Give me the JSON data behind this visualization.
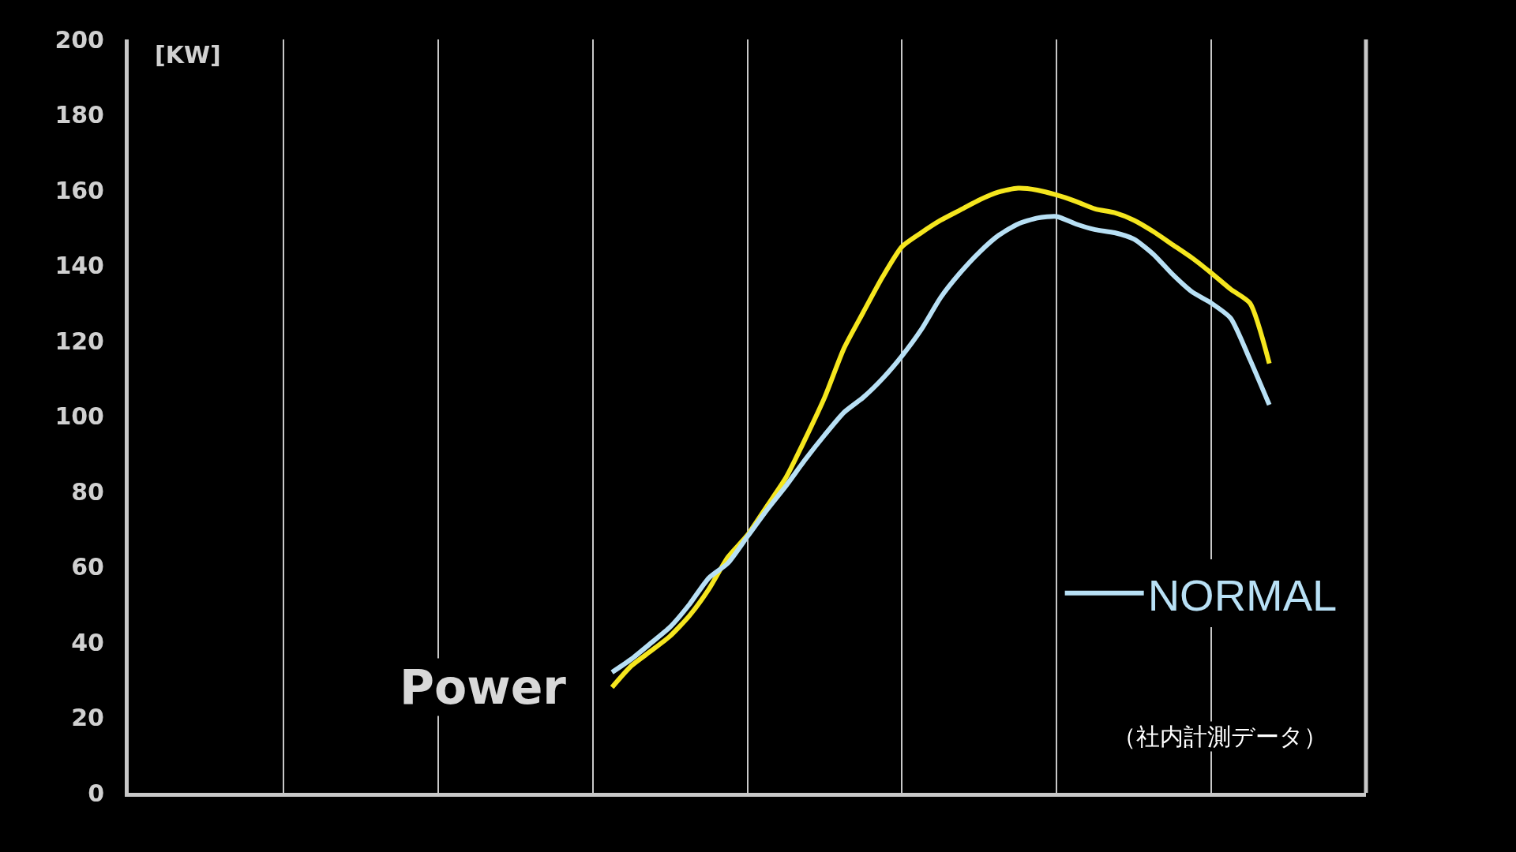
{
  "chart_data": {
    "type": "line",
    "ylabel": "[KW]",
    "categories": [
      null,
      null,
      null,
      null,
      null,
      null,
      null,
      null,
      null,
      null,
      null,
      null,
      null,
      null,
      null,
      null,
      null,
      null,
      null,
      null,
      null,
      null,
      null,
      null,
      null,
      null,
      null,
      null,
      null,
      null,
      null,
      null,
      null,
      null,
      null,
      null,
      null,
      null,
      null,
      null,
      null,
      null,
      null,
      null,
      null,
      null,
      null,
      null,
      null,
      null,
      null,
      null,
      null,
      null,
      null,
      null,
      null,
      null,
      null,
      null,
      null,
      null,
      null,
      null,
      null
    ],
    "series": [
      {
        "color": "#f5e61e",
        "values": [
          null,
          null,
          null,
          null,
          null,
          null,
          null,
          null,
          null,
          null,
          null,
          null,
          null,
          null,
          null,
          null,
          null,
          null,
          null,
          null,
          null,
          null,
          null,
          null,
          null,
          28,
          33.7,
          37.6,
          41.6,
          47,
          54,
          62.6,
          68.4,
          76,
          83.7,
          94,
          105,
          118,
          127.6,
          137,
          145,
          148.7,
          152,
          154.7,
          157.4,
          159.5,
          160.5,
          160,
          158.7,
          157,
          155,
          154,
          152,
          149,
          145.5,
          142,
          138,
          133.7,
          130,
          114,
          null,
          null,
          null,
          null,
          null
        ]
      },
      {
        "name": "NORMAL",
        "color": "#b8e0f5",
        "values": [
          null,
          null,
          null,
          null,
          null,
          null,
          null,
          null,
          null,
          null,
          null,
          null,
          null,
          null,
          null,
          null,
          null,
          null,
          null,
          null,
          null,
          null,
          null,
          null,
          null,
          32,
          35.5,
          39.7,
          44,
          50,
          57,
          61,
          68,
          75,
          81.5,
          88.5,
          95,
          101,
          105,
          110,
          116,
          123,
          131.5,
          138,
          143.5,
          148,
          151,
          152.6,
          153,
          151,
          149.5,
          148.7,
          147,
          143,
          137.6,
          133,
          130,
          126,
          115,
          103,
          null,
          null,
          null,
          null,
          null
        ]
      }
    ],
    "ylim": [
      0,
      200
    ],
    "yticks": [
      0,
      20,
      40,
      60,
      80,
      100,
      120,
      140,
      160,
      180,
      200
    ],
    "grid": "x",
    "legend": "bottom right",
    "line_style": "solid",
    "marker": "none",
    "annotations": [
      "Power",
      "（社内計測データ）"
    ]
  }
}
